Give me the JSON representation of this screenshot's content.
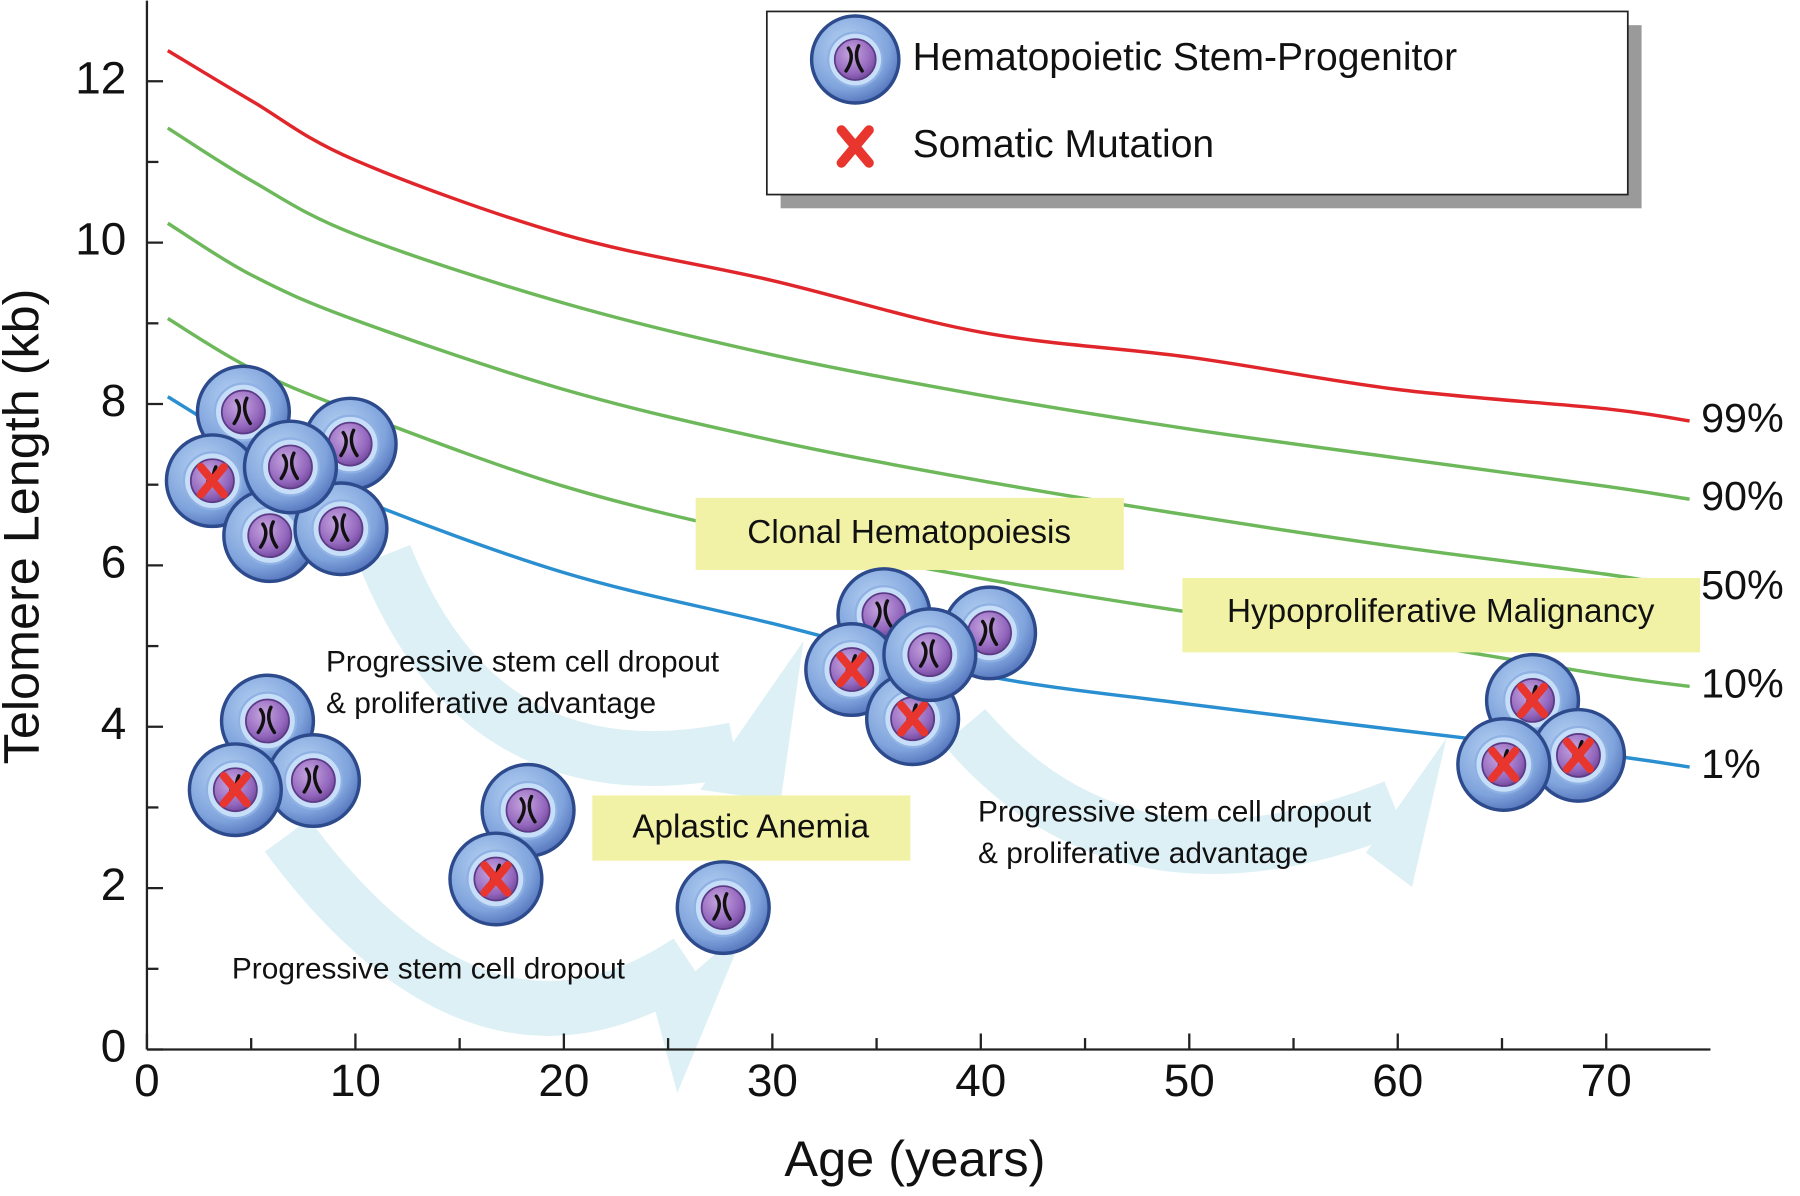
{
  "chart_data": {
    "type": "line",
    "x_label": "Age (years)",
    "y_label": "Telomere Length (kb)",
    "x": [
      1,
      5,
      10,
      20,
      30,
      40,
      50,
      60,
      70,
      74
    ],
    "series": [
      {
        "name": "99%",
        "color": "#e0262b",
        "values": [
          12.38,
          11.76,
          11.02,
          10.1,
          9.53,
          8.89,
          8.58,
          8.18,
          7.94,
          7.79
        ]
      },
      {
        "name": "90%",
        "color": "#6db85a",
        "values": [
          11.42,
          10.77,
          10.1,
          9.25,
          8.61,
          8.11,
          7.69,
          7.33,
          6.98,
          6.82
        ]
      },
      {
        "name": "50%",
        "color": "#6db85a",
        "values": [
          10.24,
          9.6,
          9.04,
          8.18,
          7.55,
          7.05,
          6.62,
          6.23,
          5.89,
          5.72
        ]
      },
      {
        "name": "10%",
        "color": "#6db85a",
        "values": [
          9.06,
          8.44,
          7.9,
          6.98,
          6.34,
          5.84,
          5.42,
          5.06,
          4.64,
          4.5
        ]
      },
      {
        "name": "1%",
        "color": "#2a8fd0",
        "values": [
          8.09,
          7.47,
          6.84,
          5.91,
          5.28,
          4.64,
          4.28,
          3.96,
          3.65,
          3.5
        ]
      }
    ],
    "xlim": [
      0,
      75
    ],
    "xticks": [
      0,
      10,
      20,
      30,
      40,
      50,
      60,
      70
    ],
    "ylim": [
      0,
      13
    ],
    "yticks": [
      0,
      2,
      4,
      6,
      8,
      10,
      12
    ],
    "legend_items": [
      "Hematopoietic Stem-Progenitor",
      "Somatic Mutation"
    ],
    "annotations": [
      {
        "lines": [
          "Clonal Hematopoiesis"
        ]
      },
      {
        "lines": [
          "Aplastic Anemia"
        ]
      },
      {
        "lines": [
          "Hypoproliferative Malignancy"
        ]
      },
      {
        "lines": [
          "Progressive stem cell dropout",
          "& proliferative advantage"
        ]
      },
      {
        "lines": [
          "Progressive stem cell dropout",
          "& proliferative advantage"
        ]
      },
      {
        "lines": [
          "Progressive stem cell dropout"
        ]
      }
    ]
  }
}
